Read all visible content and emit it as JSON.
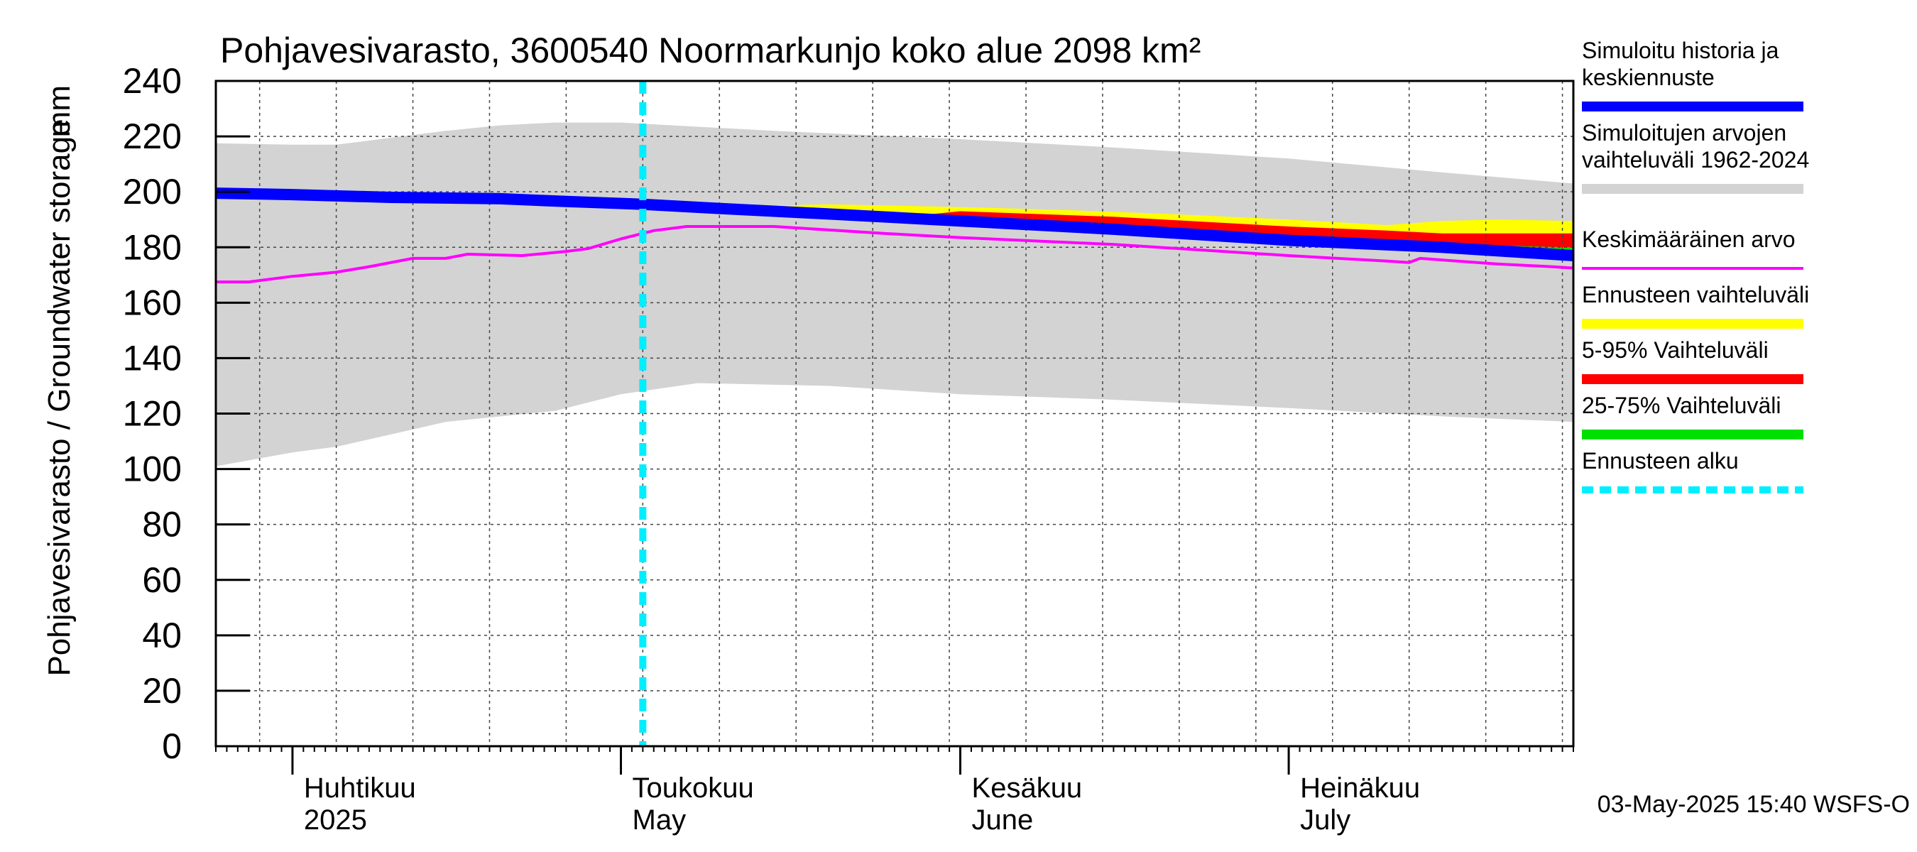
{
  "chart_data": {
    "type": "area",
    "title": "Pohjavesivarasto, 3600540 Noormarkunjo koko alue 2098 km²",
    "ylabel": "Pohjavesivarasto / Groundwater storage",
    "yunit": "mm",
    "ylim": [
      0,
      240
    ],
    "yticks": [
      0,
      20,
      40,
      60,
      80,
      100,
      120,
      140,
      160,
      180,
      200,
      220,
      240
    ],
    "xlim": [
      "2025-03-25",
      "2025-07-27"
    ],
    "grid": true,
    "month_labels": [
      {
        "date": "2025-04-01",
        "fi": "Huhtikuu",
        "en": "2025"
      },
      {
        "date": "2025-05-01",
        "fi": "Toukokuu",
        "en": "May"
      },
      {
        "date": "2025-06-01",
        "fi": "Kesäkuu",
        "en": "June"
      },
      {
        "date": "2025-07-01",
        "fi": "Heinäkuu",
        "en": "July"
      }
    ],
    "forecast_start": "2025-05-03",
    "legend": [
      {
        "label": "Simuloitu historia ja keskiennuste",
        "color": "#0000ff",
        "style": "thick"
      },
      {
        "label": "Simuloitujen arvojen vaihteluväli 1962-2024",
        "color": "#d3d3d3",
        "style": "thick"
      },
      {
        "label": "Keskimääräinen arvo",
        "color": "#ff00ff",
        "style": "thin"
      },
      {
        "label": "Ennusteen vaihteluväli",
        "color": "#ffff00",
        "style": "thick"
      },
      {
        "label": "5-95% Vaihteluväli",
        "color": "#ff0000",
        "style": "thick"
      },
      {
        "label": "25-75% Vaihteluväli",
        "color": "#00e000",
        "style": "thick"
      },
      {
        "label": "Ennusteen alku",
        "color": "#00eeff",
        "style": "dashed"
      }
    ],
    "legend_position": "right",
    "series": [
      {
        "name": "Simuloitu historia ja keskiennuste",
        "color": "#0000ff",
        "points": [
          [
            "2025-03-25",
            199.5
          ],
          [
            "2025-04-01",
            199
          ],
          [
            "2025-04-10",
            198
          ],
          [
            "2025-04-20",
            197.5
          ],
          [
            "2025-04-26",
            196.5
          ],
          [
            "2025-05-03",
            195.5
          ],
          [
            "2025-05-10",
            194
          ],
          [
            "2025-05-20",
            192
          ],
          [
            "2025-06-01",
            189.5
          ],
          [
            "2025-06-15",
            186.5
          ],
          [
            "2025-07-01",
            182.5
          ],
          [
            "2025-07-15",
            180
          ],
          [
            "2025-07-27",
            177
          ]
        ]
      },
      {
        "name": "Keskimääräinen arvo",
        "color": "#ff00ff",
        "points": [
          [
            "2025-03-25",
            167.5
          ],
          [
            "2025-03-28",
            167.5
          ],
          [
            "2025-04-01",
            169.5
          ],
          [
            "2025-04-05",
            171
          ],
          [
            "2025-04-08",
            173
          ],
          [
            "2025-04-12",
            176
          ],
          [
            "2025-04-15",
            176
          ],
          [
            "2025-04-17",
            177.5
          ],
          [
            "2025-04-22",
            177
          ],
          [
            "2025-04-26",
            178.5
          ],
          [
            "2025-04-28",
            179.5
          ],
          [
            "2025-05-01",
            183
          ],
          [
            "2025-05-04",
            186
          ],
          [
            "2025-05-07",
            187.5
          ],
          [
            "2025-05-15",
            187.5
          ],
          [
            "2025-05-25",
            185
          ],
          [
            "2025-06-01",
            183.5
          ],
          [
            "2025-06-15",
            181
          ],
          [
            "2025-07-01",
            177
          ],
          [
            "2025-07-10",
            175
          ],
          [
            "2025-07-12",
            174.5
          ],
          [
            "2025-07-13",
            176
          ],
          [
            "2025-07-20",
            174
          ],
          [
            "2025-07-25",
            173
          ],
          [
            "2025-07-27",
            172.5
          ]
        ]
      }
    ],
    "bands": [
      {
        "name": "Simuloitujen arvojen vaihteluväli 1962-2024",
        "color": "#d3d3d3",
        "upper": [
          [
            "2025-03-25",
            217.5
          ],
          [
            "2025-04-01",
            217
          ],
          [
            "2025-04-05",
            217
          ],
          [
            "2025-04-15",
            222
          ],
          [
            "2025-04-20",
            224
          ],
          [
            "2025-04-25",
            225
          ],
          [
            "2025-05-01",
            225
          ],
          [
            "2025-05-15",
            222
          ],
          [
            "2025-06-01",
            219
          ],
          [
            "2025-06-15",
            216
          ],
          [
            "2025-07-01",
            212
          ],
          [
            "2025-07-15",
            207
          ],
          [
            "2025-07-27",
            203
          ]
        ],
        "lower": [
          [
            "2025-03-25",
            101
          ],
          [
            "2025-04-01",
            106
          ],
          [
            "2025-04-05",
            108
          ],
          [
            "2025-04-15",
            117
          ],
          [
            "2025-04-25",
            121
          ],
          [
            "2025-05-01",
            127
          ],
          [
            "2025-05-08",
            131
          ],
          [
            "2025-05-20",
            130
          ],
          [
            "2025-06-01",
            127
          ],
          [
            "2025-06-15",
            125
          ],
          [
            "2025-07-01",
            122
          ],
          [
            "2025-07-15",
            119
          ],
          [
            "2025-07-27",
            117
          ]
        ]
      },
      {
        "name": "Ennusteen vaihteluväli",
        "color": "#ffff00",
        "upper": [
          [
            "2025-05-03",
            195.5
          ],
          [
            "2025-05-15",
            195
          ],
          [
            "2025-05-20",
            195.5
          ],
          [
            "2025-06-01",
            194.5
          ],
          [
            "2025-06-10",
            193.5
          ],
          [
            "2025-06-20",
            192
          ],
          [
            "2025-07-01",
            190
          ],
          [
            "2025-07-10",
            188
          ],
          [
            "2025-07-15",
            189.5
          ],
          [
            "2025-07-20",
            190
          ],
          [
            "2025-07-27",
            189.5
          ]
        ],
        "lower": [
          [
            "2025-05-03",
            195.5
          ],
          [
            "2025-05-20",
            192
          ],
          [
            "2025-06-01",
            189
          ],
          [
            "2025-06-15",
            185.5
          ],
          [
            "2025-07-01",
            182
          ],
          [
            "2025-07-15",
            179
          ],
          [
            "2025-07-27",
            176
          ]
        ]
      },
      {
        "name": "5-95% Vaihteluväli",
        "color": "#ff0000",
        "upper": [
          [
            "2025-05-03",
            195.5
          ],
          [
            "2025-05-27",
            191
          ],
          [
            "2025-06-01",
            193
          ],
          [
            "2025-06-15",
            191
          ],
          [
            "2025-07-01",
            187.5
          ],
          [
            "2025-07-10",
            186
          ],
          [
            "2025-07-15",
            185
          ],
          [
            "2025-07-27",
            185
          ]
        ],
        "lower": [
          [
            "2025-05-03",
            195.5
          ],
          [
            "2025-05-20",
            191.5
          ],
          [
            "2025-06-01",
            189
          ],
          [
            "2025-06-15",
            186
          ],
          [
            "2025-07-01",
            182
          ],
          [
            "2025-07-15",
            179
          ],
          [
            "2025-07-27",
            177
          ]
        ]
      },
      {
        "name": "25-75% Vaihteluväli",
        "color": "#00e000",
        "upper": [
          [
            "2025-05-03",
            195.5
          ],
          [
            "2025-06-01",
            190.5
          ],
          [
            "2025-06-15",
            187.5
          ],
          [
            "2025-07-01",
            183.5
          ],
          [
            "2025-07-15",
            181
          ],
          [
            "2025-07-27",
            180
          ]
        ],
        "lower": [
          [
            "2025-05-03",
            195.5
          ],
          [
            "2025-06-01",
            189
          ],
          [
            "2025-06-15",
            186
          ],
          [
            "2025-07-01",
            182
          ],
          [
            "2025-07-15",
            179
          ],
          [
            "2025-07-27",
            177
          ]
        ]
      }
    ],
    "footer": "03-May-2025 15:40 WSFS-O"
  }
}
